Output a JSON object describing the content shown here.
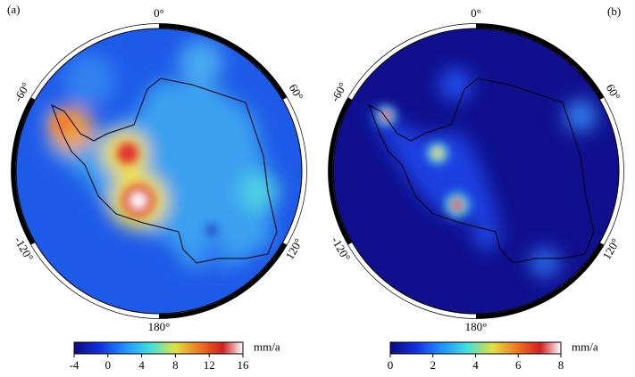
{
  "panels": [
    {
      "label": "(a)",
      "longitude_labels": [
        "0°",
        "60°",
        "120°",
        "180°",
        "-120°",
        "-60°"
      ],
      "colorbar": {
        "lim": [
          -4,
          16
        ],
        "ticks": [
          -4,
          0,
          4,
          8,
          12,
          16
        ],
        "unit": "mm/a"
      }
    },
    {
      "label": "(b)",
      "longitude_labels": [
        "0°",
        "60°",
        "120°",
        "180°",
        "-120°",
        "-60°"
      ],
      "colorbar": {
        "lim": [
          0,
          8
        ],
        "ticks": [
          0,
          2,
          4,
          6,
          8
        ],
        "unit": "mm/a"
      }
    }
  ]
}
